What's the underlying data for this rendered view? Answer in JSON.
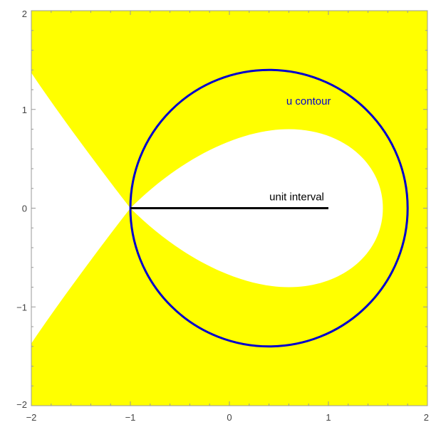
{
  "chart_data": {
    "type": "region_plot",
    "title": "",
    "xlabel": "",
    "ylabel": "",
    "xlim": [
      -2,
      2
    ],
    "ylim": [
      -2,
      2
    ],
    "x_ticks": [
      "−2",
      "−1",
      "0",
      "1",
      "2"
    ],
    "y_ticks": [
      "−2",
      "−1",
      "0",
      "1",
      "2"
    ],
    "grid": false,
    "colors": {
      "region_fill": "#ffff00",
      "contour": "#0000cc",
      "interval": "#000000",
      "axis": "#999999"
    },
    "region_boundary": {
      "loop_x_extent": [
        -1,
        1.55
      ],
      "loop_y_extent": [
        -0.8,
        0.8
      ],
      "left_branch_endpoints": [
        [
          -2,
          1.37
        ],
        [
          -2,
          -1.37
        ]
      ],
      "crossing_point": [
        -1,
        0
      ]
    },
    "contour": {
      "label": "u contour",
      "center": [
        0.4,
        0
      ],
      "radius": 1.4
    },
    "interval": {
      "label": "unit interval",
      "x": [
        -1,
        1
      ],
      "y": 0
    }
  }
}
